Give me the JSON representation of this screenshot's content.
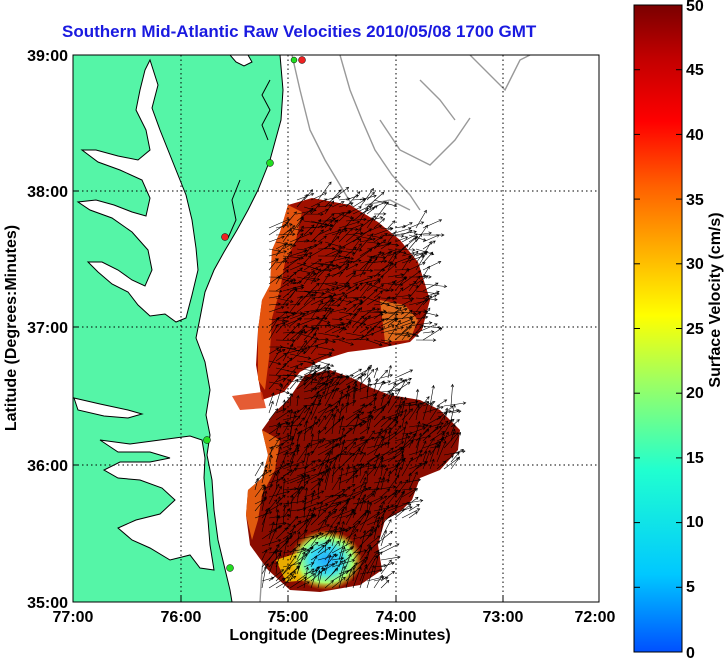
{
  "title": "Southern Mid-Atlantic Raw Velocities 2010/05/08 1700 GMT",
  "xaxis": {
    "label": "Longitude (Degrees:Minutes)",
    "ticks": [
      "77:00",
      "76:00",
      "75:00",
      "74:00",
      "73:00",
      "72:00"
    ]
  },
  "yaxis": {
    "label": "Latitude (Degrees:Minutes)",
    "ticks": [
      "39:00",
      "38:00",
      "37:00",
      "36:00",
      "35:00"
    ]
  },
  "colorbar": {
    "label": "Surface Velocity (cm/s)",
    "ticks": [
      "50",
      "45",
      "40",
      "35",
      "30",
      "25",
      "20",
      "15",
      "10",
      "5",
      "0"
    ],
    "colors": [
      "#0050ff",
      "#00c8ff",
      "#20ffd0",
      "#a0ff60",
      "#ffff00",
      "#ffb000",
      "#ff6000",
      "#ff0000",
      "#c00000",
      "#7a0000"
    ]
  },
  "colors": {
    "land": "#55f5a7",
    "coast": "#000000",
    "bathymetry": "#999999",
    "grid": "#000000",
    "station_green": "#22dd22",
    "station_red": "#ee2222"
  }
}
